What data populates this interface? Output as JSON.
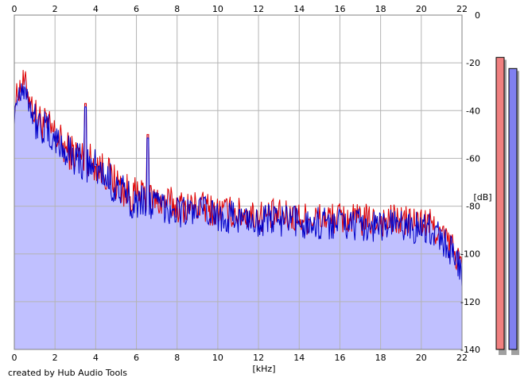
{
  "credit": "created by Hub Audio Tools",
  "chart_data": {
    "type": "area",
    "xlabel": "[kHz]",
    "ylabel": "[dB]",
    "xlim": [
      0,
      22
    ],
    "ylim": [
      -140,
      0
    ],
    "x_ticks": [
      0,
      2,
      4,
      6,
      8,
      10,
      12,
      14,
      16,
      18,
      20,
      22
    ],
    "y_ticks": [
      0,
      -20,
      -40,
      -60,
      -80,
      -100,
      -120,
      -140
    ],
    "x_tick_labels": [
      "0",
      "2",
      "4",
      "6",
      "8",
      "10",
      "12",
      "14",
      "16",
      "18",
      "20",
      "22"
    ],
    "y_tick_labels": [
      "0",
      "-20",
      "-40",
      "-60",
      "-80",
      "-100",
      "-120",
      "-140"
    ],
    "grid": true,
    "colors": {
      "left_channel": "#e00000",
      "right_channel": "#0000c8",
      "fill": "#c0c0ff",
      "grid": "#b4b4b4",
      "meter_left": "#f08080",
      "meter_right": "#8080f0"
    },
    "series": [
      {
        "color": "#e00000",
        "x": [
          0,
          0.25,
          0.5,
          0.75,
          1,
          1.5,
          2,
          2.5,
          3,
          3.5,
          4,
          4.5,
          5,
          5.5,
          6,
          6.5,
          7,
          7.5,
          8,
          8.5,
          9,
          9.5,
          10,
          11,
          12,
          13,
          14,
          15,
          16,
          17,
          18,
          19,
          20,
          20.5,
          21,
          21.5,
          22
        ],
        "values": [
          -38,
          -30,
          -28,
          -34,
          -42,
          -46,
          -50,
          -56,
          -58,
          -60,
          -62,
          -66,
          -70,
          -74,
          -76,
          -76,
          -78,
          -78,
          -80,
          -80,
          -80,
          -81,
          -82,
          -83,
          -84,
          -84,
          -85,
          -85,
          -85,
          -86,
          -86,
          -86,
          -87,
          -88,
          -92,
          -97,
          -105
        ]
      },
      {
        "color": "#0000c8",
        "x": [
          0,
          0.25,
          0.5,
          0.75,
          1,
          1.5,
          2,
          2.5,
          3,
          3.5,
          4,
          4.5,
          5,
          5.5,
          6,
          6.5,
          7,
          7.5,
          8,
          8.5,
          9,
          9.5,
          10,
          11,
          12,
          13,
          14,
          15,
          16,
          17,
          18,
          19,
          20,
          20.5,
          21,
          21.5,
          22
        ],
        "values": [
          -40,
          -31,
          -30,
          -36,
          -44,
          -48,
          -52,
          -57,
          -59,
          -62,
          -64,
          -68,
          -72,
          -76,
          -78,
          -78,
          -80,
          -80,
          -82,
          -82,
          -82,
          -83,
          -84,
          -85,
          -86,
          -86,
          -87,
          -87,
          -87,
          -88,
          -88,
          -88,
          -89,
          -90,
          -94,
          -99,
          -108
        ]
      }
    ],
    "peaks": [
      {
        "x": 3.5,
        "db": -37
      },
      {
        "x": 6.55,
        "db": -50
      }
    ],
    "level_meters": [
      {
        "channel": "left",
        "level_db": -9,
        "color": "#f08080"
      },
      {
        "channel": "right",
        "level_db": -14,
        "color": "#8080f0"
      }
    ]
  }
}
